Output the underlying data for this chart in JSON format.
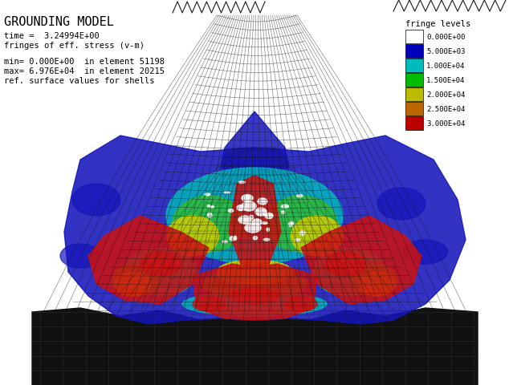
{
  "title": "GROUNDING MODEL",
  "line1": "time =  3.24994E+00",
  "line2": "fringes of eff. stress (v-m)",
  "line3": "min= 0.000E+00  in element 51198",
  "line4": "max= 6.976E+04  in element 20215",
  "line5": "ref. surface values for shells",
  "legend_title": "fringe levels",
  "legend_labels": [
    "0.000E+00",
    "5.000E+03",
    "1.000E+04",
    "1.500E+04",
    "2.000E+04",
    "2.500E+04",
    "3.000E+04"
  ],
  "legend_colors": [
    "#ffffff",
    "#0000bb",
    "#00bbbb",
    "#00bb00",
    "#bbbb00",
    "#bb6600",
    "#bb0000"
  ],
  "bg_color": "#ffffff",
  "text_color": "#000000",
  "mesh_color": "#111111",
  "title_fontsize": 11,
  "info_fontsize": 7.5,
  "figsize": [
    6.34,
    4.81
  ],
  "dpi": 100
}
